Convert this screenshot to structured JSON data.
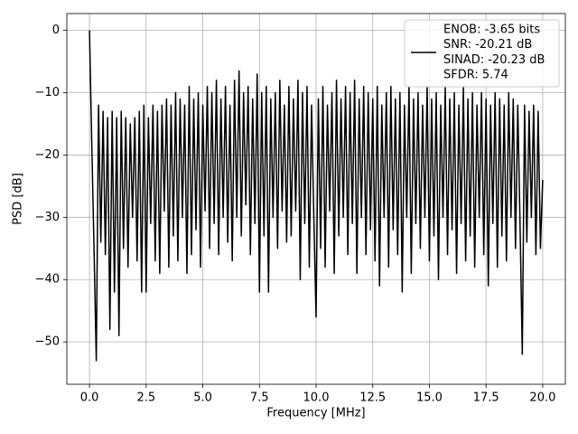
{
  "chart_data": {
    "type": "line",
    "xlabel": "Frequency [MHz]",
    "ylabel": "PSD [dB]",
    "xlim": [
      -1,
      21
    ],
    "ylim": [
      -56.8,
      2.7
    ],
    "grid": true,
    "legend": "upper right",
    "xticks": [
      {
        "value": 0,
        "label": "0.0"
      },
      {
        "value": 2.5,
        "label": "2.5"
      },
      {
        "value": 5,
        "label": "5.0"
      },
      {
        "value": 7.5,
        "label": "7.5"
      },
      {
        "value": 10,
        "label": "10.0"
      },
      {
        "value": 12.5,
        "label": "12.5"
      },
      {
        "value": 15,
        "label": "15.0"
      },
      {
        "value": 17.5,
        "label": "17.5"
      },
      {
        "value": 20,
        "label": "20.0"
      }
    ],
    "yticks": [
      {
        "value": -50,
        "label": "−50"
      },
      {
        "value": -40,
        "label": "−40"
      },
      {
        "value": -30,
        "label": "−30"
      },
      {
        "value": -20,
        "label": "−20"
      },
      {
        "value": -10,
        "label": "−10"
      },
      0
    ],
    "x": [
      0,
      0.1,
      0.2,
      0.3,
      0.4,
      0.5,
      0.6,
      0.7,
      0.8,
      0.9,
      1,
      1.1,
      1.2,
      1.3,
      1.4,
      1.5,
      1.6,
      1.7,
      1.8,
      1.9,
      2,
      2.1,
      2.2,
      2.3,
      2.4,
      2.5,
      2.6,
      2.7,
      2.8,
      2.9,
      3,
      3.1,
      3.2,
      3.3,
      3.4,
      3.5,
      3.6,
      3.7,
      3.8,
      3.9,
      4,
      4.1,
      4.2,
      4.3,
      4.4,
      4.5,
      4.6,
      4.7,
      4.8,
      4.9,
      5,
      5.1,
      5.2,
      5.3,
      5.4,
      5.5,
      5.6,
      5.7,
      5.8,
      5.9,
      6,
      6.1,
      6.2,
      6.3,
      6.4,
      6.5,
      6.6,
      6.7,
      6.8,
      6.9,
      7,
      7.1,
      7.2,
      7.3,
      7.4,
      7.5,
      7.6,
      7.7,
      7.8,
      7.9,
      8,
      8.1,
      8.2,
      8.3,
      8.4,
      8.5,
      8.6,
      8.7,
      8.8,
      8.9,
      9,
      9.1,
      9.2,
      9.3,
      9.4,
      9.5,
      9.6,
      9.7,
      9.8,
      9.9,
      10,
      10.1,
      10.2,
      10.3,
      10.4,
      10.5,
      10.6,
      10.7,
      10.8,
      10.9,
      11,
      11.1,
      11.2,
      11.3,
      11.4,
      11.5,
      11.6,
      11.7,
      11.8,
      11.9,
      12,
      12.1,
      12.2,
      12.3,
      12.4,
      12.5,
      12.6,
      12.7,
      12.8,
      12.9,
      13,
      13.1,
      13.2,
      13.3,
      13.4,
      13.5,
      13.6,
      13.7,
      13.8,
      13.9,
      14,
      14.1,
      14.2,
      14.3,
      14.4,
      14.5,
      14.6,
      14.7,
      14.8,
      14.9,
      15,
      15.1,
      15.2,
      15.3,
      15.4,
      15.5,
      15.6,
      15.7,
      15.8,
      15.9,
      16,
      16.1,
      16.2,
      16.3,
      16.4,
      16.5,
      16.6,
      16.7,
      16.8,
      16.9,
      17,
      17.1,
      17.2,
      17.3,
      17.4,
      17.5,
      17.6,
      17.7,
      17.8,
      17.9,
      18,
      18.1,
      18.2,
      18.3,
      18.4,
      18.5,
      18.6,
      18.7,
      18.8,
      18.9,
      19,
      19.1,
      19.2,
      19.3,
      19.4,
      19.5,
      19.6,
      19.7,
      19.8,
      19.9,
      20
    ],
    "series": [
      {
        "name": [
          "ENOB: -3.65 bits",
          "SNR: -20.21 dB",
          "SINAD: -20.23 dB",
          "SFDR: 5.74"
        ],
        "color": "#000000",
        "values": [
          0,
          -18,
          -35,
          -53,
          -12,
          -34,
          -13,
          -36,
          -14,
          -48,
          -13,
          -42,
          -14,
          -49,
          -13,
          -35,
          -14,
          -38,
          -15,
          -30,
          -14,
          -37,
          -13,
          -42,
          -12,
          -42,
          -14,
          -31,
          -12,
          -37,
          -13,
          -39,
          -12,
          -29,
          -11,
          -38,
          -12,
          -33,
          -10,
          -37,
          -11,
          -30,
          -12,
          -39,
          -9,
          -36,
          -11,
          -32,
          -10,
          -38,
          -12,
          -29,
          -9,
          -35,
          -10,
          -31,
          -8,
          -36,
          -11,
          -30,
          -9,
          -34,
          -12,
          -37,
          -8,
          -30,
          -6.5,
          -33,
          -10,
          -28,
          -9,
          -36,
          -11,
          -31,
          -7,
          -42,
          -10,
          -33,
          -9,
          -42,
          -11,
          -30,
          -10,
          -35,
          -8,
          -29,
          -12,
          -34,
          -9,
          -33,
          -11,
          -29,
          -8,
          -40,
          -10,
          -31,
          -9,
          -38,
          -12,
          -30,
          -46,
          -11,
          -35,
          -9,
          -38,
          -12,
          -29,
          -10,
          -39,
          -8,
          -33,
          -11,
          -30,
          -9,
          -36,
          -10,
          -31,
          -8,
          -39,
          -11,
          -30,
          -9,
          -36,
          -10,
          -32,
          -11,
          -37,
          -9,
          -41,
          -12,
          -30,
          -10,
          -38,
          -9,
          -32,
          -11,
          -36,
          -10,
          -42,
          -12,
          -30,
          -9,
          -39,
          -11,
          -31,
          -10,
          -35,
          -12,
          -30,
          -9,
          -37,
          -11,
          -33,
          -10,
          -40,
          -12,
          -30,
          -9,
          -36,
          -11,
          -32,
          -10,
          -39,
          -12,
          -31,
          -9,
          -37,
          -11,
          -33,
          -10,
          -38,
          -12,
          -30,
          -10,
          -36,
          -11,
          -41,
          -12,
          -31,
          -10,
          -38,
          -11,
          -33,
          -12,
          -37,
          -10,
          -30,
          -11,
          -35,
          -12,
          -31,
          -52,
          -12,
          -34,
          -13,
          -30,
          -12,
          -36,
          -13,
          -35,
          -24
        ]
      }
    ]
  }
}
